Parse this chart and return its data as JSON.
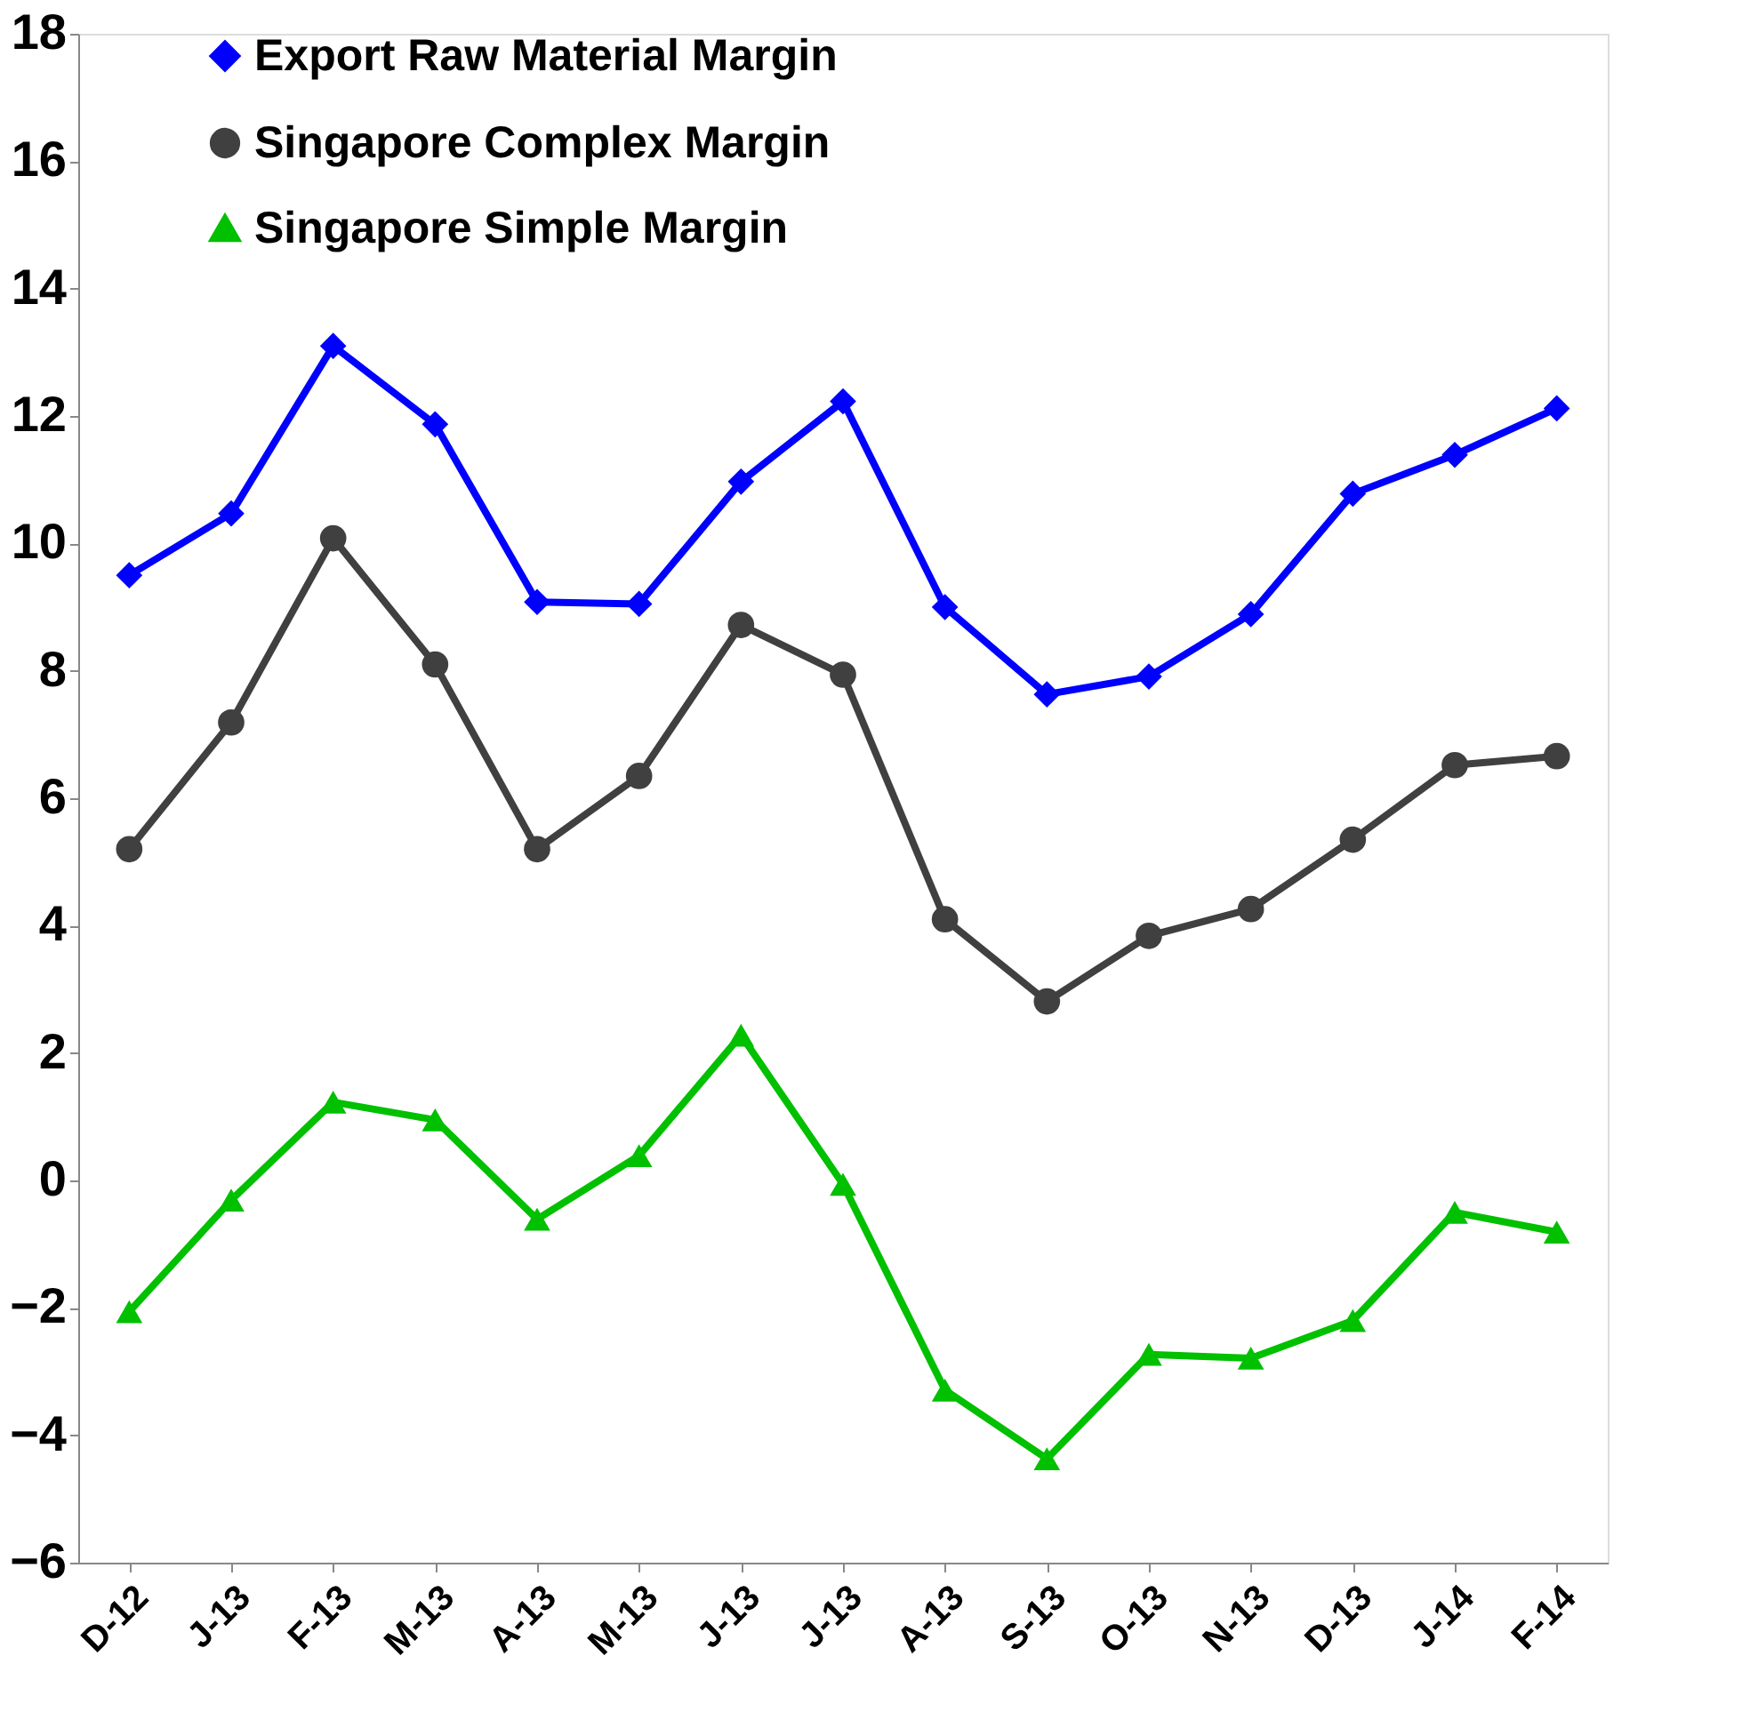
{
  "chart_data": {
    "type": "line",
    "categories": [
      "D-12",
      "J-13",
      "F-13",
      "M-13",
      "A-13",
      "M-13",
      "J-13",
      "J-13",
      "A-13",
      "S-13",
      "O-13",
      "N-13",
      "D-13",
      "J-14",
      "F-14"
    ],
    "series": [
      {
        "name": "Export Raw Material Margin",
        "color": "#0000ff",
        "marker": "diamond",
        "values": [
          9.5,
          10.47,
          13.1,
          11.87,
          9.08,
          9.05,
          10.97,
          12.23,
          9.0,
          7.63,
          7.91,
          8.89,
          10.78,
          11.39,
          12.12
        ]
      },
      {
        "name": "Singapore Complex Margin",
        "color": "#404040",
        "marker": "circle",
        "values": [
          5.2,
          7.19,
          10.08,
          8.1,
          5.2,
          6.35,
          8.72,
          7.94,
          4.1,
          2.81,
          3.84,
          4.26,
          5.35,
          6.52,
          6.66
        ]
      },
      {
        "name": "Singapore Simple Margin",
        "color": "#00c000",
        "marker": "triangle",
        "values": [
          -2.06,
          -0.31,
          1.23,
          0.95,
          -0.61,
          0.39,
          2.28,
          -0.06,
          -3.29,
          -4.37,
          -2.73,
          -2.79,
          -2.2,
          -0.5,
          -0.81
        ]
      }
    ],
    "ylim": [
      -6,
      18
    ],
    "yticks": [
      -6,
      -4,
      -2,
      0,
      2,
      4,
      6,
      8,
      10,
      12,
      14,
      16,
      18
    ],
    "grid": false,
    "legend": "top left",
    "line_style": "solid"
  }
}
